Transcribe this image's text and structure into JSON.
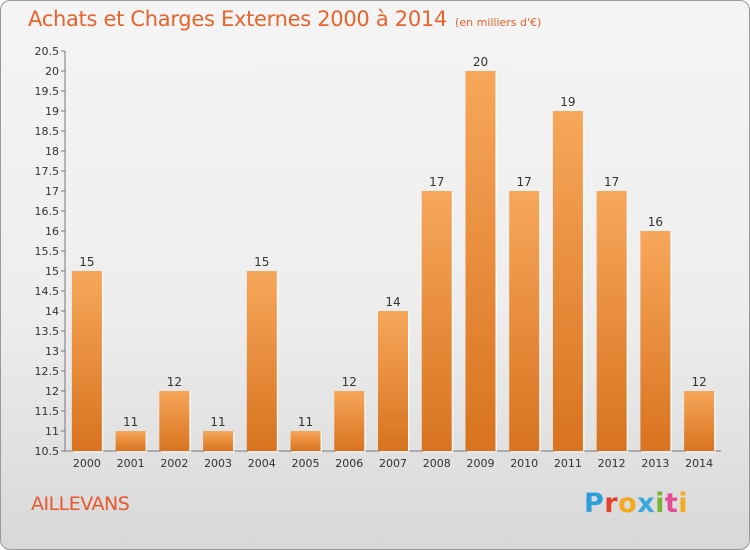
{
  "header": {
    "title": "Achats et Charges Externes 2000 à 2014",
    "subtitle": "(en milliers d'€)"
  },
  "footer": {
    "place": "AILLEVANS",
    "brand_letters": [
      "P",
      "r",
      "o",
      "x",
      "i",
      "t",
      "i"
    ]
  },
  "colors": {
    "bar_top": "#f7a75a",
    "bar_bottom": "#d8731f",
    "accent": "#e7632c",
    "brand": [
      "#2a9fd8",
      "#e5422a",
      "#f4a91e",
      "#3aa8dc",
      "#78b631",
      "#e64a97",
      "#f4a91e"
    ]
  },
  "chart_data": {
    "type": "bar",
    "categories": [
      "2000",
      "2001",
      "2002",
      "2003",
      "2004",
      "2005",
      "2006",
      "2007",
      "2008",
      "2009",
      "2010",
      "2011",
      "2012",
      "2013",
      "2014"
    ],
    "values": [
      15,
      11,
      12,
      11,
      15,
      11,
      12,
      14,
      17,
      20,
      17,
      19,
      17,
      16,
      12
    ],
    "title": "Achats et Charges Externes 2000 à 2014",
    "subtitle": "(en milliers d'€)",
    "xlabel": "",
    "ylabel": "",
    "ylim": [
      10.5,
      20.5
    ],
    "yticks": [
      "10.5",
      "11",
      "11.5",
      "12",
      "12.5",
      "13",
      "13.5",
      "14",
      "14.5",
      "15",
      "15.5",
      "16",
      "16.5",
      "17",
      "17.5",
      "18",
      "18.5",
      "19",
      "19.5",
      "20",
      "20.5"
    ],
    "grid": false,
    "data_labels": true
  }
}
